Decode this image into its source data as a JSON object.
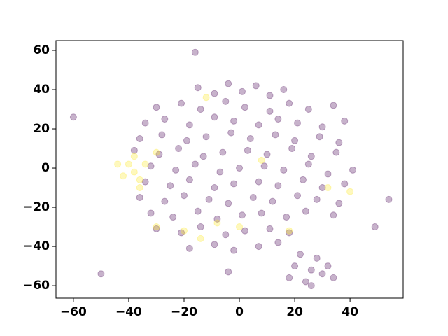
{
  "chart_data": {
    "type": "scatter",
    "series": [
      {
        "color": "#440154",
        "x": [
          -15,
          -9,
          -4,
          1,
          6,
          11,
          16,
          -30,
          -21,
          -14,
          -5,
          2,
          11,
          18,
          25,
          34,
          -34,
          -27,
          -18,
          -9,
          -2,
          7,
          14,
          21,
          30,
          38,
          -36,
          -28,
          -19,
          -12,
          -3,
          4,
          13,
          20,
          29,
          36,
          -38,
          -29,
          -22,
          -13,
          -6,
          3,
          10,
          19,
          26,
          35,
          -32,
          -23,
          -16,
          -7,
          0,
          9,
          16,
          25,
          32,
          41,
          -34,
          -25,
          -18,
          -9,
          -2,
          7,
          14,
          23,
          30,
          38,
          -36,
          -27,
          -20,
          -11,
          -4,
          5,
          12,
          21,
          28,
          36,
          -32,
          -24,
          -15,
          -8,
          1,
          8,
          17,
          24,
          34,
          -30,
          -21,
          -14,
          -5,
          2,
          11,
          18,
          -18,
          -9,
          -2,
          7,
          14,
          26,
          20,
          32,
          24,
          28,
          18,
          34,
          26,
          22,
          30,
          -60,
          -16,
          -50,
          -4,
          54,
          49
        ],
        "y": [
          41,
          38,
          43,
          39,
          42,
          37,
          40,
          31,
          33,
          30,
          34,
          31,
          29,
          33,
          30,
          32,
          23,
          25,
          22,
          26,
          24,
          22,
          25,
          23,
          21,
          24,
          15,
          17,
          14,
          16,
          18,
          15,
          17,
          14,
          16,
          13,
          9,
          7,
          10,
          6,
          8,
          9,
          7,
          10,
          6,
          8,
          1,
          -1,
          2,
          -2,
          0,
          1,
          -1,
          2,
          -3,
          -1,
          -7,
          -9,
          -6,
          -10,
          -8,
          -7,
          -9,
          -6,
          -10,
          -8,
          -15,
          -17,
          -14,
          -16,
          -18,
          -15,
          -17,
          -14,
          -16,
          -18,
          -23,
          -25,
          -22,
          -26,
          -24,
          -23,
          -25,
          -22,
          -24,
          -31,
          -33,
          -30,
          -34,
          -32,
          -31,
          -33,
          -41,
          -39,
          -42,
          -40,
          -38,
          -52,
          -50,
          -50,
          -58,
          -46,
          -56,
          -56,
          -60,
          -44,
          -54,
          26,
          59,
          -54,
          -53,
          -16,
          -30
        ]
      },
      {
        "color": "#fde725",
        "x": [
          -38,
          -40,
          -36,
          -42,
          -34,
          -38,
          -44,
          -36,
          -20,
          -14,
          -8,
          0,
          8,
          18,
          32,
          40,
          -30,
          -12,
          -30
        ],
        "y": [
          -2,
          2,
          -6,
          -4,
          2,
          6,
          2,
          -10,
          -32,
          -36,
          -28,
          -30,
          4,
          -32,
          -10,
          -12,
          -30,
          36,
          8
        ]
      }
    ],
    "alpha": 0.3,
    "xlim": [
      -66.3,
      59.2
    ],
    "ylim": [
      -66.4,
      65
    ],
    "xticks": [
      {
        "value": -60,
        "label": "−60"
      },
      {
        "value": -40,
        "label": "−40"
      },
      {
        "value": -20,
        "label": "−20"
      },
      0,
      20,
      40
    ],
    "yticks": [
      {
        "value": -60,
        "label": "−60"
      },
      {
        "value": -40,
        "label": "−40"
      },
      {
        "value": -20,
        "label": "−20"
      },
      0,
      20,
      40,
      60
    ],
    "grid": false
  }
}
